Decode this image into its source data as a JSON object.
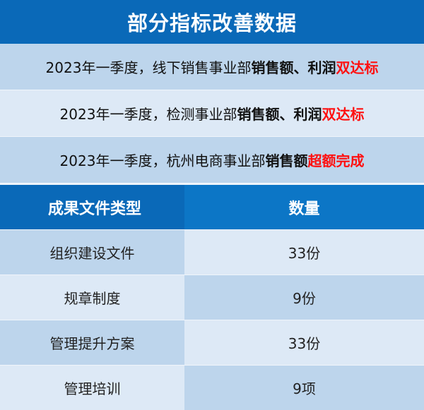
{
  "title": "部分指标改善数据",
  "highlights": [
    {
      "prefix": "2023年一季度，线下销售事业部",
      "bold": "销售额、利润",
      "status": "双达标"
    },
    {
      "prefix": "2023年一季度，检测事业部",
      "bold": "销售额、利润",
      "status": "双达标"
    },
    {
      "prefix": "2023年一季度，杭州电商事业部",
      "bold": "销售额",
      "status": "超额完成"
    }
  ],
  "table": {
    "headers": [
      "成果文件类型",
      "数量"
    ],
    "rows": [
      [
        "组织建设文件",
        "33份"
      ],
      [
        "规章制度",
        "9份"
      ],
      [
        "管理提升方案",
        "33份"
      ],
      [
        "管理培训",
        "9项"
      ]
    ]
  },
  "colors": {
    "header_blue": "#0a69b8",
    "light_blue": "#bdd5ec",
    "pale_blue": "#dde9f6",
    "highlight_red": "#ff1010"
  }
}
